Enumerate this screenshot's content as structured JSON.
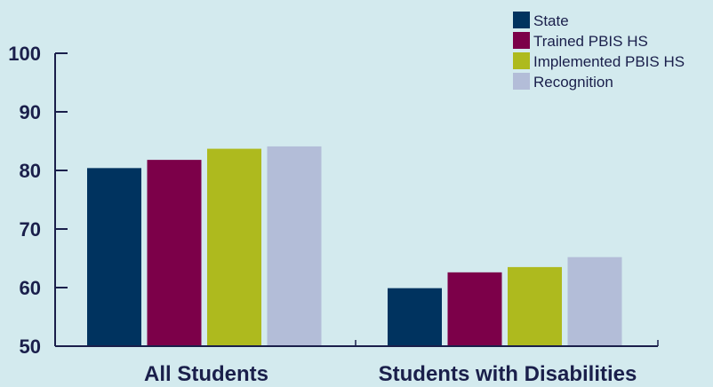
{
  "chart_data": {
    "type": "bar",
    "categories": [
      "All Students",
      "Students with Disabilities"
    ],
    "series": [
      {
        "name": "State",
        "color": "#00335f",
        "values": [
          80.4,
          59.9
        ]
      },
      {
        "name": "Trained PBIS HS",
        "color": "#7c0049",
        "values": [
          81.8,
          62.6
        ]
      },
      {
        "name": "Implemented PBIS HS",
        "color": "#aeba1e",
        "values": [
          83.7,
          63.5
        ]
      },
      {
        "name": "Recognition",
        "color": "#b3bdd8",
        "values": [
          84.1,
          65.2
        ]
      }
    ],
    "yticks": [
      "50",
      "60",
      "70",
      "80",
      "90",
      "100"
    ],
    "ylim": [
      50,
      100
    ],
    "legend_position": "top-right",
    "grid": false
  },
  "colors": {
    "background": "#d3eaee",
    "axis": "#1a1f4b",
    "text": "#1a1f4b"
  }
}
